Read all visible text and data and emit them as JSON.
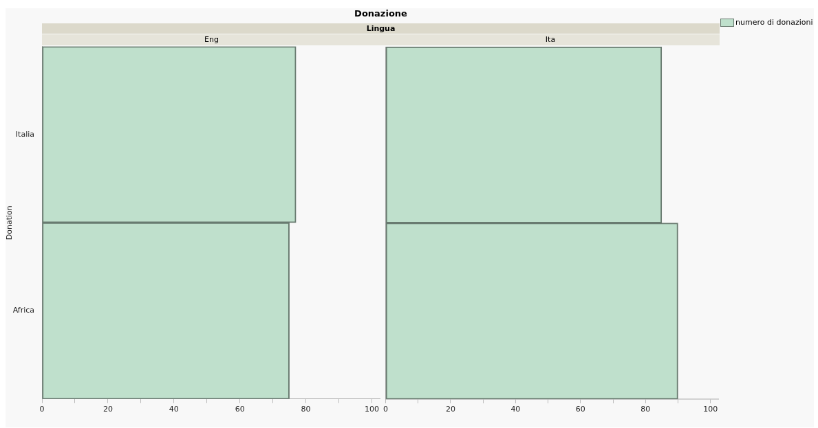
{
  "chart_data": [
    {
      "type": "bar",
      "orientation": "horizontal",
      "annotations": [
        "Donazione",
        "Lingua"
      ],
      "title": "Eng",
      "ylabel": "Donation",
      "categories": [
        "Italia",
        "Africa"
      ],
      "legend": "top right",
      "series": [
        {
          "name": "numero di donazioni",
          "color": "#bfe0cc",
          "values": [
            77,
            75
          ]
        }
      ],
      "xlim": [
        0,
        102.5
      ],
      "xticks": [
        0,
        {
          "value": 10,
          "label": null
        },
        20,
        {
          "value": 30,
          "label": null
        },
        40,
        {
          "value": 50,
          "label": null
        },
        60,
        {
          "value": 70,
          "label": null
        },
        80,
        {
          "value": 90,
          "label": null
        },
        100
      ],
      "grid": false
    },
    {
      "type": "bar",
      "orientation": "horizontal",
      "title": "Ita",
      "categories": [
        null,
        null
      ],
      "tick_labels": "x",
      "series": [
        {
          "color": "#bfe0cc",
          "values": [
            85,
            90
          ]
        }
      ],
      "xlim": [
        0,
        102.5
      ],
      "xticks": [
        0,
        {
          "value": 10,
          "label": null
        },
        20,
        {
          "value": 30,
          "label": null
        },
        40,
        {
          "value": 50,
          "label": null
        },
        60,
        {
          "value": 70,
          "label": null
        },
        80,
        {
          "value": 90,
          "label": null
        },
        100
      ],
      "grid": false
    }
  ]
}
